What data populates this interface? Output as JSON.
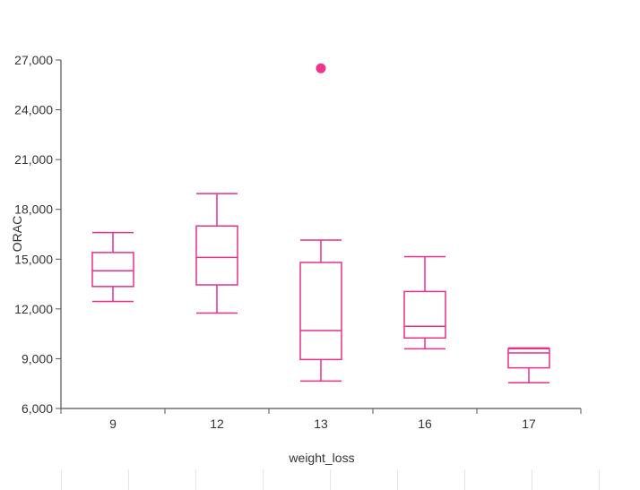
{
  "chart_data": {
    "type": "box",
    "xlabel": "weight_loss",
    "ylabel": "ORAC",
    "ylim": [
      6000,
      27000
    ],
    "yticks": [
      6000,
      9000,
      12000,
      15000,
      18000,
      21000,
      24000,
      27000
    ],
    "ytick_labels": [
      "6,000",
      "9,000",
      "12,000",
      "15,000",
      "18,000",
      "21,000",
      "24,000",
      "27,000"
    ],
    "categories": [
      "9",
      "12",
      "13",
      "16",
      "17"
    ],
    "boxes": [
      {
        "category": "9",
        "whisker_low": 12450,
        "q1": 13350,
        "median": 14300,
        "q3": 15400,
        "whisker_high": 16600,
        "outliers": []
      },
      {
        "category": "12",
        "whisker_low": 11750,
        "q1": 13450,
        "median": 15100,
        "q3": 17000,
        "whisker_high": 18950,
        "outliers": []
      },
      {
        "category": "13",
        "whisker_low": 7650,
        "q1": 8950,
        "median": 10700,
        "q3": 14800,
        "whisker_high": 16150,
        "outliers": [
          26500
        ]
      },
      {
        "category": "16",
        "whisker_low": 9600,
        "q1": 10250,
        "median": 10950,
        "q3": 13050,
        "whisker_high": 15150,
        "outliers": []
      },
      {
        "category": "17",
        "whisker_low": 7550,
        "q1": 8450,
        "median": 9350,
        "q3": 9600,
        "whisker_high": 9650,
        "outliers": []
      }
    ],
    "color": "#e6308a",
    "outlier_color": "#f0338c",
    "grid": false,
    "legend": "none"
  }
}
